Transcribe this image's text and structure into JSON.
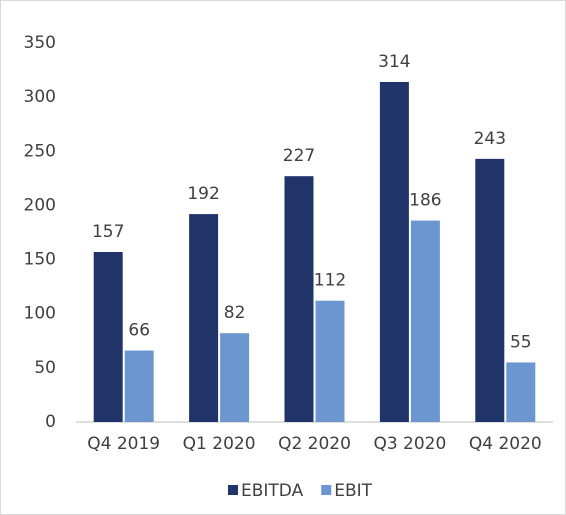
{
  "chart_data": {
    "type": "bar",
    "categories": [
      "Q4 2019",
      "Q1 2020",
      "Q2 2020",
      "Q3 2020",
      "Q4 2020"
    ],
    "series": [
      {
        "name": "EBITDA",
        "color": "#203469",
        "values": [
          157,
          192,
          227,
          314,
          243
        ]
      },
      {
        "name": "EBIT",
        "color": "#6b96d0",
        "values": [
          66,
          82,
          112,
          186,
          55
        ]
      }
    ],
    "ylim": [
      0,
      350
    ],
    "yticks": [
      0,
      50,
      100,
      150,
      200,
      250,
      300,
      350
    ],
    "grid": false,
    "legend": "bottom"
  }
}
